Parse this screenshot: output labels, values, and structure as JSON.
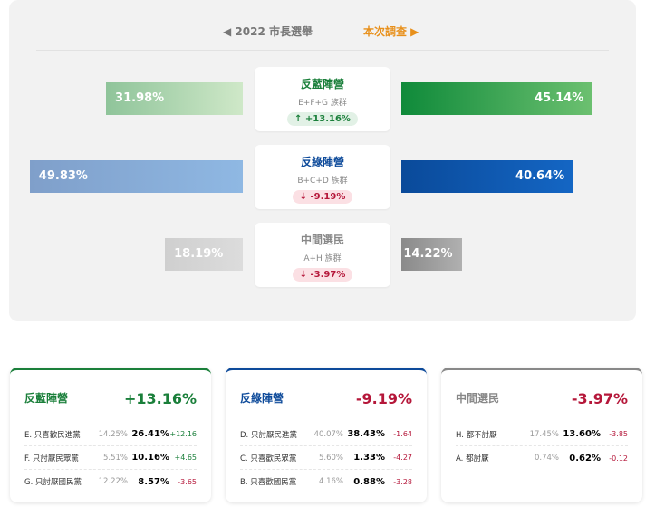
{
  "nav": {
    "prev": "◀ 2022 市長選舉",
    "next": "本次調查 ▶"
  },
  "colors": {
    "green": "#1a7f3a",
    "blue": "#0d4a9a",
    "gray": "#888888",
    "red": "#b5173a",
    "orange": "#e8901b"
  },
  "comparison": [
    {
      "title": "反藍陣營",
      "groups": "E+F+G 族群",
      "change": "↑ +13.16%",
      "direction": "up",
      "prev": "31.98%",
      "prev_value": 31.98,
      "current": "45.14%",
      "current_value": 45.14
    },
    {
      "title": "反綠陣營",
      "groups": "B+C+D 族群",
      "change": "↓ -9.19%",
      "direction": "down",
      "prev": "49.83%",
      "prev_value": 49.83,
      "current": "40.64%",
      "current_value": 40.64
    },
    {
      "title": "中間選民",
      "groups": "A+H 族群",
      "change": "↓ -3.97%",
      "direction": "down",
      "prev": "18.19%",
      "prev_value": 18.19,
      "current": "14.22%",
      "current_value": 14.22
    }
  ],
  "cards": [
    {
      "title": "反藍陣營",
      "total": "+13.16%",
      "rows": [
        {
          "name": "E. 只喜歡民進黨",
          "prev": "14.25%",
          "cur": "26.41%",
          "delta": "+12.16"
        },
        {
          "name": "F. 只討厭民眾黨",
          "prev": "5.51%",
          "cur": "10.16%",
          "delta": "+4.65"
        },
        {
          "name": "G. 只討厭國民黨",
          "prev": "12.22%",
          "cur": "8.57%",
          "delta": "-3.65"
        }
      ]
    },
    {
      "title": "反綠陣營",
      "total": "-9.19%",
      "rows": [
        {
          "name": "D. 只討厭民進黨",
          "prev": "40.07%",
          "cur": "38.43%",
          "delta": "-1.64"
        },
        {
          "name": "C. 只喜歡民眾黨",
          "prev": "5.60%",
          "cur": "1.33%",
          "delta": "-4.27"
        },
        {
          "name": "B. 只喜歡國民黨",
          "prev": "4.16%",
          "cur": "0.88%",
          "delta": "-3.28"
        }
      ]
    },
    {
      "title": "中間選民",
      "total": "-3.97%",
      "rows": [
        {
          "name": "H. 都不討厭",
          "prev": "17.45%",
          "cur": "13.60%",
          "delta": "-3.85"
        },
        {
          "name": "A. 都討厭",
          "prev": "0.74%",
          "cur": "0.62%",
          "delta": "-0.12"
        }
      ]
    }
  ]
}
